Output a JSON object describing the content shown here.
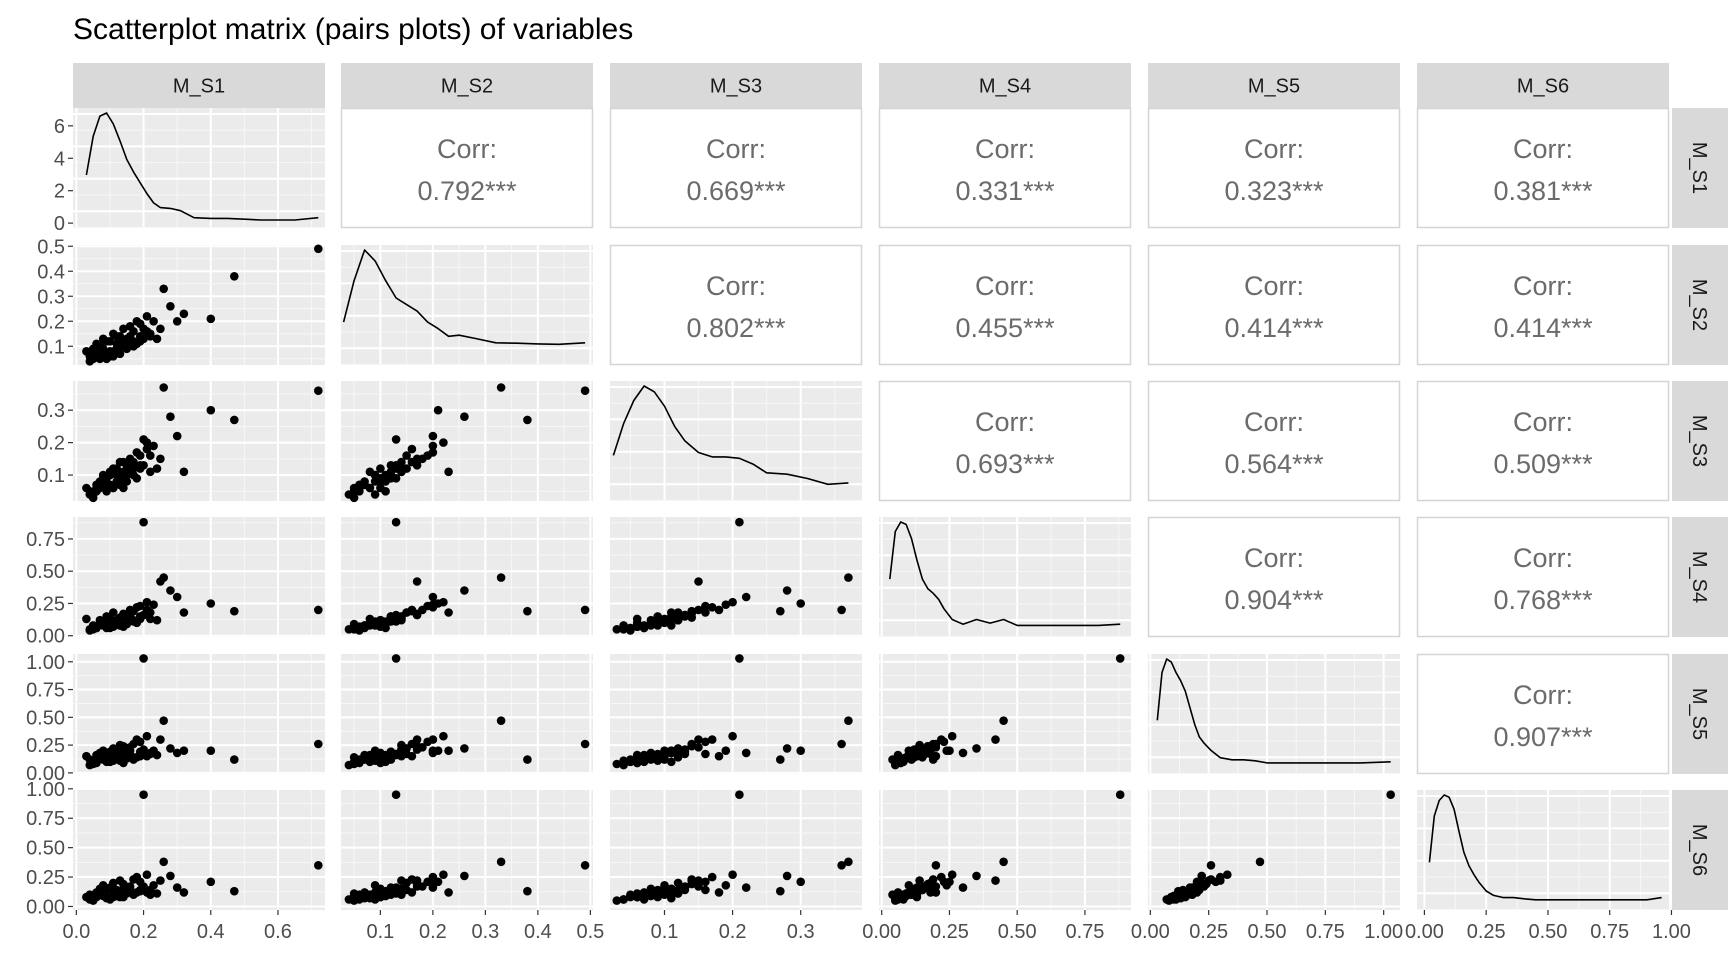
{
  "chart_data": {
    "type": "scatter",
    "subtype": "pairs-matrix",
    "title": "Scatterplot matrix (pairs plots) of variables",
    "variables": [
      "M_S1",
      "M_S2",
      "M_S3",
      "M_S4",
      "M_S5",
      "M_S6"
    ],
    "corr_label": "Corr:",
    "correlations": {
      "0-1": "0.792***",
      "0-2": "0.669***",
      "0-3": "0.331***",
      "0-4": "0.323***",
      "0-5": "0.381***",
      "1-2": "0.802***",
      "1-3": "0.455***",
      "1-4": "0.414***",
      "1-5": "0.414***",
      "2-3": "0.693***",
      "2-4": "0.564***",
      "2-5": "0.509***",
      "3-4": "0.904***",
      "3-5": "0.768***",
      "4-5": "0.907***"
    },
    "x_axes": [
      {
        "lim": [
          -0.01,
          0.74
        ],
        "ticks": [
          "0.0",
          "0.2",
          "0.4",
          "0.6"
        ]
      },
      {
        "lim": [
          0.025,
          0.505
        ],
        "ticks": [
          "0.1",
          "0.2",
          "0.3",
          "0.4",
          "0.5"
        ]
      },
      {
        "lim": [
          0.02,
          0.39
        ],
        "ticks": [
          "0.1",
          "0.2",
          "0.3"
        ]
      },
      {
        "lim": [
          -0.01,
          0.92
        ],
        "ticks": [
          "0.00",
          "0.25",
          "0.50",
          "0.75"
        ]
      },
      {
        "lim": [
          -0.01,
          1.07
        ],
        "ticks": [
          "0.00",
          "0.25",
          "0.50",
          "0.75",
          "1.00"
        ]
      },
      {
        "lim": [
          -0.03,
          0.99
        ],
        "ticks": [
          "0.00",
          "0.25",
          "0.50",
          "0.75",
          "1.00"
        ]
      }
    ],
    "y_axes": [
      {
        "lim": [
          -0.3,
          7.1
        ],
        "ticks": [
          "0",
          "2",
          "4",
          "6"
        ]
      },
      {
        "lim": [
          0.025,
          0.505
        ],
        "ticks": [
          "0.1",
          "0.2",
          "0.3",
          "0.4",
          "0.5"
        ]
      },
      {
        "lim": [
          0.02,
          0.39
        ],
        "ticks": [
          "0.1",
          "0.2",
          "0.3"
        ]
      },
      {
        "lim": [
          -0.01,
          0.92
        ],
        "ticks": [
          "0.00",
          "0.25",
          "0.50",
          "0.75"
        ]
      },
      {
        "lim": [
          -0.01,
          1.07
        ],
        "ticks": [
          "0.00",
          "0.25",
          "0.50",
          "0.75",
          "1.00"
        ]
      },
      {
        "lim": [
          -0.03,
          0.99
        ],
        "ticks": [
          "0.00",
          "0.25",
          "0.50",
          "0.75",
          "1.00"
        ]
      }
    ],
    "densities": [
      {
        "x": [
          0.03,
          0.05,
          0.07,
          0.09,
          0.11,
          0.13,
          0.15,
          0.17,
          0.19,
          0.21,
          0.23,
          0.25,
          0.28,
          0.31,
          0.35,
          0.4,
          0.45,
          0.5,
          0.55,
          0.6,
          0.65,
          0.72
        ],
        "y": [
          2.9,
          5.4,
          6.7,
          6.9,
          6.2,
          5.1,
          3.9,
          3.1,
          2.4,
          1.7,
          1.1,
          0.8,
          0.75,
          0.6,
          0.15,
          0.1,
          0.1,
          0.05,
          0.0,
          0.0,
          0.0,
          0.15
        ]
      },
      {
        "x": [
          0.03,
          0.05,
          0.07,
          0.09,
          0.11,
          0.13,
          0.15,
          0.17,
          0.19,
          0.21,
          0.23,
          0.25,
          0.28,
          0.32,
          0.36,
          0.4,
          0.44,
          0.49
        ],
        "y": [
          0.16,
          0.35,
          0.49,
          0.44,
          0.35,
          0.27,
          0.24,
          0.21,
          0.16,
          0.13,
          0.095,
          0.1,
          0.085,
          0.065,
          0.063,
          0.06,
          0.058,
          0.065
        ]
      },
      {
        "x": [
          0.025,
          0.04,
          0.055,
          0.07,
          0.085,
          0.1,
          0.115,
          0.13,
          0.15,
          0.17,
          0.19,
          0.21,
          0.23,
          0.25,
          0.28,
          0.31,
          0.34,
          0.37
        ],
        "y": [
          0.13,
          0.24,
          0.32,
          0.37,
          0.35,
          0.3,
          0.23,
          0.18,
          0.14,
          0.125,
          0.125,
          0.12,
          0.1,
          0.07,
          0.065,
          0.05,
          0.03,
          0.035
        ]
      },
      {
        "x": [
          0.03,
          0.05,
          0.07,
          0.09,
          0.11,
          0.13,
          0.15,
          0.17,
          0.19,
          0.21,
          0.23,
          0.26,
          0.3,
          0.35,
          0.4,
          0.45,
          0.5,
          0.6,
          0.7,
          0.8,
          0.88
        ],
        "y": [
          0.42,
          0.82,
          0.9,
          0.88,
          0.76,
          0.58,
          0.42,
          0.34,
          0.3,
          0.25,
          0.17,
          0.08,
          0.04,
          0.08,
          0.05,
          0.08,
          0.03,
          0.03,
          0.03,
          0.03,
          0.04
        ]
      },
      {
        "x": [
          0.03,
          0.05,
          0.07,
          0.09,
          0.11,
          0.13,
          0.15,
          0.17,
          0.19,
          0.21,
          0.23,
          0.26,
          0.3,
          0.35,
          0.4,
          0.45,
          0.5,
          0.6,
          0.7,
          0.8,
          0.9,
          1.03
        ],
        "y": [
          0.44,
          0.9,
          1.03,
          1.0,
          0.9,
          0.82,
          0.72,
          0.56,
          0.4,
          0.28,
          0.22,
          0.15,
          0.08,
          0.06,
          0.06,
          0.05,
          0.03,
          0.03,
          0.03,
          0.03,
          0.03,
          0.04
        ]
      },
      {
        "x": [
          0.02,
          0.04,
          0.06,
          0.08,
          0.1,
          0.12,
          0.14,
          0.16,
          0.18,
          0.2,
          0.22,
          0.25,
          0.28,
          0.32,
          0.36,
          0.4,
          0.45,
          0.5,
          0.6,
          0.7,
          0.8,
          0.9,
          0.96
        ],
        "y": [
          0.36,
          0.78,
          0.92,
          0.97,
          0.95,
          0.84,
          0.64,
          0.45,
          0.33,
          0.25,
          0.18,
          0.1,
          0.06,
          0.04,
          0.04,
          0.03,
          0.02,
          0.02,
          0.02,
          0.02,
          0.02,
          0.02,
          0.04
        ]
      }
    ],
    "points": [
      [
        0.03,
        0.08,
        0.06,
        0.13,
        0.15,
        0.08
      ],
      [
        0.04,
        0.06,
        0.05,
        0.04,
        0.12,
        0.1
      ],
      [
        0.05,
        0.05,
        0.03,
        0.05,
        0.08,
        0.05
      ],
      [
        0.06,
        0.07,
        0.07,
        0.06,
        0.16,
        0.12
      ],
      [
        0.07,
        0.1,
        0.08,
        0.12,
        0.18,
        0.15
      ],
      [
        0.08,
        0.09,
        0.1,
        0.1,
        0.2,
        0.18
      ],
      [
        0.09,
        0.12,
        0.09,
        0.15,
        0.14,
        0.14
      ],
      [
        0.1,
        0.08,
        0.11,
        0.08,
        0.1,
        0.07
      ],
      [
        0.11,
        0.15,
        0.12,
        0.18,
        0.22,
        0.2
      ],
      [
        0.12,
        0.11,
        0.08,
        0.09,
        0.13,
        0.09
      ],
      [
        0.13,
        0.14,
        0.14,
        0.14,
        0.25,
        0.22
      ],
      [
        0.14,
        0.1,
        0.06,
        0.07,
        0.09,
        0.08
      ],
      [
        0.15,
        0.13,
        0.13,
        0.16,
        0.17,
        0.16
      ],
      [
        0.16,
        0.18,
        0.15,
        0.2,
        0.23,
        0.17
      ],
      [
        0.17,
        0.12,
        0.1,
        0.11,
        0.12,
        0.1
      ],
      [
        0.18,
        0.2,
        0.17,
        0.22,
        0.3,
        0.25
      ],
      [
        0.19,
        0.14,
        0.12,
        0.13,
        0.15,
        0.13
      ],
      [
        0.2,
        0.13,
        0.21,
        0.88,
        1.03,
        0.95
      ],
      [
        0.21,
        0.16,
        0.18,
        0.2,
        0.15,
        0.12
      ],
      [
        0.22,
        0.14,
        0.11,
        0.13,
        0.18,
        0.1
      ],
      [
        0.23,
        0.2,
        0.19,
        0.24,
        0.2,
        0.18
      ],
      [
        0.25,
        0.17,
        0.15,
        0.42,
        0.3,
        0.22
      ],
      [
        0.26,
        0.33,
        0.37,
        0.45,
        0.47,
        0.38
      ],
      [
        0.28,
        0.26,
        0.28,
        0.35,
        0.22,
        0.26
      ],
      [
        0.3,
        0.2,
        0.22,
        0.3,
        0.18,
        0.16
      ],
      [
        0.32,
        0.23,
        0.11,
        0.18,
        0.2,
        0.12
      ],
      [
        0.4,
        0.21,
        0.3,
        0.25,
        0.2,
        0.21
      ],
      [
        0.47,
        0.38,
        0.27,
        0.19,
        0.12,
        0.13
      ],
      [
        0.72,
        0.49,
        0.36,
        0.2,
        0.26,
        0.35
      ],
      [
        0.05,
        0.09,
        0.04,
        0.08,
        0.11,
        0.06
      ],
      [
        0.06,
        0.11,
        0.05,
        0.06,
        0.1,
        0.09
      ],
      [
        0.07,
        0.05,
        0.06,
        0.09,
        0.14,
        0.11
      ],
      [
        0.08,
        0.13,
        0.09,
        0.11,
        0.17,
        0.13
      ],
      [
        0.09,
        0.07,
        0.07,
        0.07,
        0.13,
        0.07
      ],
      [
        0.1,
        0.12,
        0.1,
        0.13,
        0.19,
        0.16
      ],
      [
        0.11,
        0.08,
        0.06,
        0.1,
        0.16,
        0.1
      ],
      [
        0.12,
        0.14,
        0.12,
        0.12,
        0.21,
        0.14
      ],
      [
        0.13,
        0.1,
        0.09,
        0.08,
        0.11,
        0.08
      ],
      [
        0.14,
        0.17,
        0.14,
        0.17,
        0.24,
        0.19
      ],
      [
        0.15,
        0.09,
        0.08,
        0.09,
        0.13,
        0.11
      ],
      [
        0.16,
        0.14,
        0.11,
        0.15,
        0.2,
        0.15
      ],
      [
        0.17,
        0.16,
        0.14,
        0.19,
        0.26,
        0.23
      ],
      [
        0.18,
        0.11,
        0.09,
        0.1,
        0.14,
        0.12
      ],
      [
        0.19,
        0.19,
        0.16,
        0.23,
        0.28,
        0.21
      ],
      [
        0.2,
        0.17,
        0.13,
        0.16,
        0.21,
        0.17
      ],
      [
        0.21,
        0.22,
        0.2,
        0.26,
        0.33,
        0.27
      ],
      [
        0.22,
        0.15,
        0.16,
        0.18,
        0.17,
        0.14
      ],
      [
        0.24,
        0.13,
        0.12,
        0.12,
        0.16,
        0.11
      ],
      [
        0.04,
        0.04,
        0.04,
        0.05,
        0.07,
        0.06
      ],
      [
        0.06,
        0.06,
        0.06,
        0.07,
        0.09,
        0.08
      ],
      [
        0.08,
        0.07,
        0.08,
        0.08,
        0.12,
        0.09
      ],
      [
        0.1,
        0.06,
        0.07,
        0.06,
        0.1,
        0.06
      ],
      [
        0.12,
        0.09,
        0.1,
        0.11,
        0.15,
        0.12
      ],
      [
        0.14,
        0.12,
        0.11,
        0.14,
        0.18,
        0.15
      ],
      [
        0.09,
        0.05,
        0.05,
        0.06,
        0.1,
        0.08
      ],
      [
        0.11,
        0.06,
        0.06,
        0.07,
        0.11,
        0.08
      ],
      [
        0.13,
        0.07,
        0.07,
        0.08,
        0.13,
        0.1
      ],
      [
        0.15,
        0.11,
        0.1,
        0.11,
        0.16,
        0.13
      ],
      [
        0.17,
        0.1,
        0.12,
        0.12,
        0.14,
        0.11
      ],
      [
        0.19,
        0.12,
        0.13,
        0.15,
        0.19,
        0.14
      ]
    ]
  }
}
